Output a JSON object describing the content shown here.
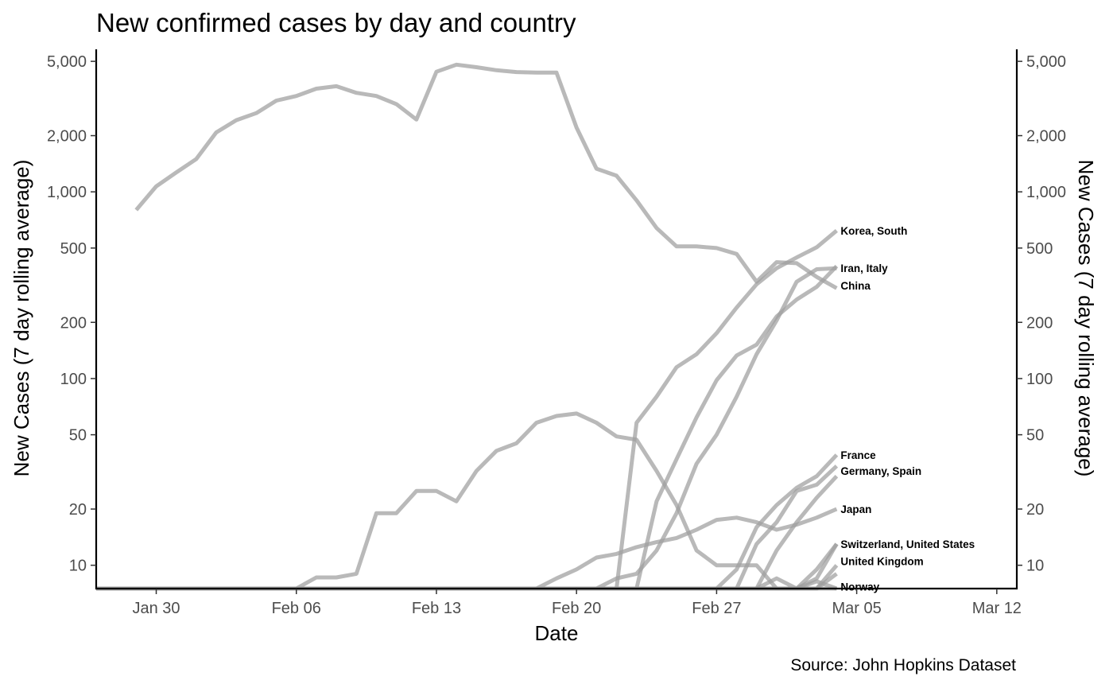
{
  "chart_data": {
    "type": "line",
    "title": "New confirmed cases by day and country",
    "xlabel": "Date",
    "ylabel": "New Cases (7 day rolling average)",
    "ylabel_right": "New Cases (7 day rolling average)",
    "caption": "Source: John Hopkins Dataset",
    "y_scale": "log10",
    "ylim": [
      7.5,
      5800
    ],
    "xlim": [
      "2020-01-27",
      "2020-03-13"
    ],
    "grid": false,
    "legend": "none",
    "x_ticks": [
      {
        "date": "2020-01-30",
        "label": "Jan 30"
      },
      {
        "date": "2020-02-06",
        "label": "Feb 06"
      },
      {
        "date": "2020-02-13",
        "label": "Feb 13"
      },
      {
        "date": "2020-02-20",
        "label": "Feb 20"
      },
      {
        "date": "2020-02-27",
        "label": "Feb 27"
      },
      {
        "date": "2020-03-05",
        "label": "Mar 05"
      },
      {
        "date": "2020-03-12",
        "label": "Mar 12"
      }
    ],
    "y_ticks": [
      {
        "value": 10,
        "label": "10"
      },
      {
        "value": 20,
        "label": "20"
      },
      {
        "value": 50,
        "label": "50"
      },
      {
        "value": 100,
        "label": "100"
      },
      {
        "value": 200,
        "label": "200"
      },
      {
        "value": 500,
        "label": "500"
      },
      {
        "value": 1000,
        "label": "1,000"
      },
      {
        "value": 2000,
        "label": "2,000"
      },
      {
        "value": 5000,
        "label": "5,000"
      }
    ],
    "series": [
      {
        "x": [
          "2020-01-29",
          "2020-01-30",
          "2020-01-31",
          "2020-02-01",
          "2020-02-02",
          "2020-02-03",
          "2020-02-04",
          "2020-02-05",
          "2020-02-06",
          "2020-02-07",
          "2020-02-08",
          "2020-02-09",
          "2020-02-10",
          "2020-02-11",
          "2020-02-12",
          "2020-02-13",
          "2020-02-14",
          "2020-02-15",
          "2020-02-16",
          "2020-02-17",
          "2020-02-18",
          "2020-02-19",
          "2020-02-20",
          "2020-02-21",
          "2020-02-22",
          "2020-02-23",
          "2020-02-24",
          "2020-02-25",
          "2020-02-26",
          "2020-02-27",
          "2020-02-28",
          "2020-02-29",
          "2020-03-01",
          "2020-03-02",
          "2020-03-03",
          "2020-03-04"
        ],
        "y": [
          800,
          1070,
          1270,
          1500,
          2080,
          2420,
          2640,
          3080,
          3260,
          3570,
          3680,
          3390,
          3260,
          2950,
          2440,
          4400,
          4800,
          4650,
          4480,
          4380,
          4350,
          4350,
          2210,
          1330,
          1220,
          900,
          640,
          510,
          510,
          500,
          465,
          330,
          420,
          415,
          350,
          305
        ]
      },
      {
        "x": [
          "2020-01-27",
          "2020-02-06",
          "2020-02-07",
          "2020-02-08",
          "2020-02-09",
          "2020-02-10",
          "2020-02-11",
          "2020-02-12",
          "2020-02-13",
          "2020-02-14",
          "2020-02-15",
          "2020-02-16",
          "2020-02-17",
          "2020-02-18",
          "2020-02-19",
          "2020-02-20",
          "2020-02-21",
          "2020-02-22",
          "2020-02-23",
          "2020-02-24",
          "2020-02-25",
          "2020-02-26",
          "2020-02-27",
          "2020-02-28",
          "2020-02-29",
          "2020-03-01",
          "2020-03-02",
          "2020-03-03",
          "2020-03-04"
        ],
        "y": [
          7.4,
          7.5,
          8.6,
          8.6,
          9.0,
          19,
          19,
          25,
          25,
          22,
          32,
          41,
          45,
          58,
          63,
          65,
          58,
          49,
          47,
          32,
          21,
          12,
          10,
          10,
          10,
          7.4,
          7.4,
          7.4,
          7.4
        ]
      },
      {
        "x": [
          "2020-01-27",
          "2020-02-22",
          "2020-02-23",
          "2020-02-24",
          "2020-02-25",
          "2020-02-26",
          "2020-02-27",
          "2020-02-28",
          "2020-02-29",
          "2020-03-01",
          "2020-03-02",
          "2020-03-03",
          "2020-03-04"
        ],
        "y": [
          7.4,
          7.5,
          58,
          80,
          115,
          135,
          175,
          240,
          320,
          390,
          445,
          505,
          620
        ]
      },
      {
        "x": [
          "2020-01-27",
          "2020-02-23",
          "2020-02-24",
          "2020-02-25",
          "2020-02-26",
          "2020-02-27",
          "2020-02-28",
          "2020-02-29",
          "2020-03-01",
          "2020-03-02",
          "2020-03-03",
          "2020-03-04"
        ],
        "y": [
          7.4,
          7.5,
          22,
          37,
          62,
          98,
          133,
          152,
          215,
          265,
          310,
          400
        ]
      },
      {
        "x": [
          "2020-01-27",
          "2020-02-21",
          "2020-02-22",
          "2020-02-23",
          "2020-02-24",
          "2020-02-25",
          "2020-02-26",
          "2020-02-27",
          "2020-02-28",
          "2020-02-29",
          "2020-03-01",
          "2020-03-02",
          "2020-03-03",
          "2020-03-04"
        ],
        "y": [
          7.4,
          7.5,
          8.5,
          9,
          12,
          19,
          35,
          50,
          80,
          135,
          205,
          330,
          385,
          390
        ]
      },
      {
        "x": [
          "2020-01-27",
          "2020-02-18",
          "2020-02-19",
          "2020-02-20",
          "2020-02-21",
          "2020-02-22",
          "2020-02-23",
          "2020-02-24",
          "2020-02-25",
          "2020-02-26",
          "2020-02-27",
          "2020-02-28",
          "2020-02-29",
          "2020-03-01",
          "2020-03-02",
          "2020-03-03",
          "2020-03-04"
        ],
        "y": [
          7.4,
          7.5,
          8.5,
          9.5,
          11,
          11.5,
          12.5,
          13.3,
          14,
          15.5,
          17.5,
          18,
          17,
          15.5,
          16.5,
          18,
          20
        ]
      },
      {
        "x": [
          "2020-01-27",
          "2020-02-27",
          "2020-02-28",
          "2020-02-29",
          "2020-03-01",
          "2020-03-02",
          "2020-03-03",
          "2020-03-04"
        ],
        "y": [
          7.4,
          7.5,
          9.5,
          16,
          21,
          26,
          30,
          39
        ]
      },
      {
        "x": [
          "2020-01-27",
          "2020-02-28",
          "2020-02-29",
          "2020-03-01",
          "2020-03-02",
          "2020-03-03",
          "2020-03-04"
        ],
        "y": [
          7.4,
          7.5,
          13,
          17,
          25,
          27,
          34
        ]
      },
      {
        "x": [
          "2020-01-27",
          "2020-02-29",
          "2020-03-01",
          "2020-03-02",
          "2020-03-03",
          "2020-03-04"
        ],
        "y": [
          7.4,
          7.5,
          12,
          17,
          23,
          30
        ]
      },
      {
        "x": [
          "2020-01-27",
          "2020-02-29",
          "2020-03-01",
          "2020-03-02",
          "2020-03-03",
          "2020-03-04"
        ],
        "y": [
          7.4,
          7.5,
          8.5,
          7.4,
          9.5,
          13
        ]
      },
      {
        "x": [
          "2020-01-27",
          "2020-03-02",
          "2020-03-03",
          "2020-03-04"
        ],
        "y": [
          7.4,
          7.5,
          8.2,
          7.4
        ]
      },
      {
        "x": [
          "2020-01-27",
          "2020-03-02",
          "2020-03-03",
          "2020-03-04"
        ],
        "y": [
          7.4,
          7.5,
          8.5,
          13
        ]
      },
      {
        "x": [
          "2020-01-27",
          "2020-03-03",
          "2020-03-04"
        ],
        "y": [
          7.4,
          7.5,
          10
        ]
      },
      {
        "x": [
          "2020-01-27",
          "2020-03-03",
          "2020-03-04"
        ],
        "y": [
          7.4,
          7.5,
          9
        ]
      }
    ],
    "annotations": [
      {
        "text": "Korea, South",
        "x": "2020-03-04",
        "y": 620
      },
      {
        "text": "Iran, Italy",
        "x": "2020-03-04",
        "y": 390
      },
      {
        "text": "China",
        "x": "2020-03-04",
        "y": 315
      },
      {
        "text": "France",
        "x": "2020-03-04",
        "y": 39
      },
      {
        "text": "Germany, Spain",
        "x": "2020-03-04",
        "y": 32
      },
      {
        "text": "Japan",
        "x": "2020-03-04",
        "y": 20
      },
      {
        "text": "Switzerland, United States",
        "x": "2020-03-04",
        "y": 13
      },
      {
        "text": "United Kingdom",
        "x": "2020-03-04",
        "y": 10.5
      },
      {
        "text": "Norway",
        "x": "2020-03-04",
        "y": 7.7
      }
    ]
  }
}
